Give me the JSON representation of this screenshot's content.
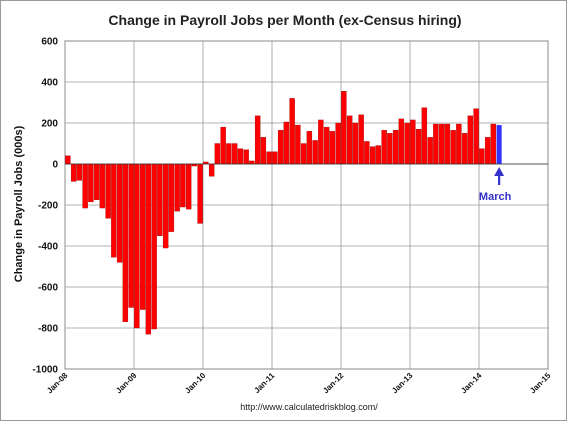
{
  "chart_data": {
    "type": "bar",
    "title": "Change in Payroll Jobs per Month (ex-Census hiring)",
    "ylabel": "Change in Payroll Jobs (000s)",
    "xlabel": "",
    "ylim": [
      -1000,
      600
    ],
    "yticks": [
      600,
      400,
      200,
      0,
      -200,
      -400,
      -600,
      -800,
      -1000
    ],
    "grid": true,
    "x_start": "Jan-08",
    "xticks": [
      "Jan-08",
      "Jan-09",
      "Jan-10",
      "Jan-11",
      "Jan-12",
      "Jan-13",
      "Jan-14",
      "Jan-15"
    ],
    "xlim": [
      "Jan-08",
      "Jan-15"
    ],
    "series": [
      {
        "color": "#ff0000",
        "values": [
          40,
          -85,
          -80,
          -215,
          -185,
          -175,
          -215,
          -265,
          -455,
          -480,
          -770,
          -700,
          -800,
          -710,
          -830,
          -805,
          -350,
          -410,
          -330,
          -230,
          -210,
          -220,
          -10,
          -290,
          10,
          -60,
          100,
          180,
          100,
          100,
          75,
          70,
          15,
          235,
          130,
          60,
          60,
          165,
          205,
          320,
          190,
          100,
          160,
          115,
          215,
          180,
          160,
          200,
          355,
          235,
          200,
          240,
          110,
          85,
          90,
          165,
          150,
          165,
          220,
          200,
          215,
          170,
          275,
          130,
          195,
          195,
          195,
          165,
          195,
          150,
          235,
          270,
          75,
          130,
          195
        ]
      },
      {
        "color": "#3333ff",
        "values": [
          190
        ]
      }
    ],
    "annotations": [
      {
        "text": "March",
        "color": "#3333cc"
      }
    ],
    "source": "http://www.calculatedriskblog.com/"
  }
}
